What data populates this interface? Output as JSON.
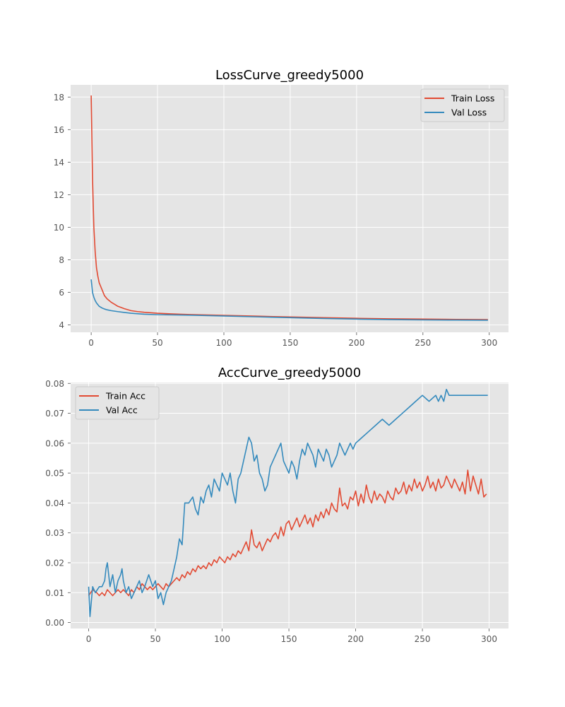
{
  "chart_data": [
    {
      "type": "line",
      "title": "LossCurve_greedy5000",
      "xlabel": "",
      "ylabel": "",
      "xlim": [
        -15.5,
        314.5
      ],
      "ylim": [
        3.55,
        18.75
      ],
      "xticks": [
        0,
        50,
        100,
        150,
        200,
        250,
        300
      ],
      "yticks": [
        4,
        6,
        8,
        10,
        12,
        14,
        16,
        18
      ],
      "grid": true,
      "legend": "top-right",
      "series": [
        {
          "name": "Train Loss",
          "color": "#E24A33",
          "x": [
            0,
            1,
            2,
            3,
            4,
            5,
            6,
            8,
            10,
            12,
            15,
            18,
            20,
            25,
            30,
            35,
            40,
            50,
            60,
            75,
            100,
            125,
            150,
            175,
            200,
            225,
            250,
            275,
            299
          ],
          "y": [
            18.1,
            13.0,
            10.0,
            8.5,
            7.5,
            7.0,
            6.6,
            6.2,
            5.8,
            5.6,
            5.4,
            5.25,
            5.15,
            5.0,
            4.88,
            4.82,
            4.78,
            4.72,
            4.68,
            4.64,
            4.59,
            4.54,
            4.49,
            4.45,
            4.41,
            4.38,
            4.36,
            4.34,
            4.33
          ]
        },
        {
          "name": "Val Loss",
          "color": "#348ABD",
          "x": [
            0,
            1,
            2,
            3,
            4,
            5,
            6,
            8,
            10,
            12,
            15,
            20,
            25,
            30,
            40,
            50,
            75,
            100,
            125,
            150,
            175,
            200,
            225,
            250,
            275,
            299
          ],
          "y": [
            6.8,
            6.0,
            5.7,
            5.5,
            5.35,
            5.25,
            5.15,
            5.05,
            4.98,
            4.93,
            4.88,
            4.82,
            4.77,
            4.72,
            4.66,
            4.63,
            4.6,
            4.55,
            4.5,
            4.45,
            4.4,
            4.36,
            4.33,
            4.31,
            4.3,
            4.29
          ]
        }
      ]
    },
    {
      "type": "line",
      "title": "AccCurve_greedy5000",
      "xlabel": "",
      "ylabel": "",
      "xlim": [
        -13.5,
        314.5
      ],
      "ylim": [
        -0.002,
        0.0803
      ],
      "xticks": [
        0,
        50,
        100,
        150,
        200,
        250,
        300
      ],
      "yticks": [
        0.0,
        0.01,
        0.02,
        0.03,
        0.04,
        0.05,
        0.06,
        0.07,
        0.08
      ],
      "ytick_labels": [
        "0.00",
        "0.01",
        "0.02",
        "0.03",
        "0.04",
        "0.05",
        "0.06",
        "0.07",
        "0.08"
      ],
      "grid": true,
      "legend": "top-left",
      "series": [
        {
          "name": "Train Acc",
          "color": "#E24A33",
          "x": [
            0,
            3,
            6,
            8,
            10,
            12,
            14,
            16,
            18,
            20,
            22,
            24,
            26,
            28,
            30,
            32,
            34,
            36,
            38,
            40,
            42,
            44,
            46,
            48,
            50,
            52,
            54,
            56,
            58,
            60,
            62,
            64,
            66,
            68,
            70,
            72,
            74,
            76,
            78,
            80,
            82,
            84,
            86,
            88,
            90,
            92,
            94,
            96,
            98,
            100,
            102,
            104,
            106,
            108,
            110,
            112,
            114,
            116,
            118,
            120,
            122,
            124,
            126,
            128,
            130,
            132,
            134,
            136,
            138,
            140,
            142,
            144,
            146,
            148,
            150,
            152,
            154,
            156,
            158,
            160,
            162,
            164,
            166,
            168,
            170,
            172,
            174,
            176,
            178,
            180,
            182,
            184,
            186,
            188,
            190,
            192,
            194,
            196,
            198,
            200,
            202,
            204,
            206,
            208,
            210,
            212,
            214,
            216,
            218,
            220,
            222,
            224,
            226,
            228,
            230,
            232,
            234,
            236,
            238,
            240,
            242,
            244,
            246,
            248,
            250,
            252,
            254,
            256,
            258,
            260,
            262,
            264,
            266,
            268,
            270,
            272,
            274,
            276,
            278,
            280,
            282,
            284,
            286,
            288,
            290,
            292,
            294,
            296,
            298
          ],
          "y": [
            0.009,
            0.011,
            0.01,
            0.009,
            0.01,
            0.009,
            0.011,
            0.01,
            0.009,
            0.01,
            0.011,
            0.01,
            0.011,
            0.01,
            0.009,
            0.011,
            0.01,
            0.012,
            0.011,
            0.013,
            0.012,
            0.011,
            0.012,
            0.011,
            0.012,
            0.013,
            0.012,
            0.011,
            0.013,
            0.012,
            0.013,
            0.014,
            0.015,
            0.014,
            0.016,
            0.015,
            0.017,
            0.016,
            0.018,
            0.017,
            0.019,
            0.018,
            0.019,
            0.018,
            0.02,
            0.019,
            0.021,
            0.02,
            0.022,
            0.021,
            0.02,
            0.022,
            0.021,
            0.023,
            0.022,
            0.024,
            0.023,
            0.025,
            0.027,
            0.024,
            0.031,
            0.026,
            0.025,
            0.027,
            0.024,
            0.026,
            0.028,
            0.027,
            0.029,
            0.03,
            0.028,
            0.032,
            0.029,
            0.033,
            0.034,
            0.031,
            0.033,
            0.035,
            0.032,
            0.034,
            0.036,
            0.033,
            0.035,
            0.032,
            0.036,
            0.034,
            0.037,
            0.035,
            0.038,
            0.036,
            0.04,
            0.038,
            0.037,
            0.045,
            0.039,
            0.04,
            0.038,
            0.042,
            0.041,
            0.044,
            0.039,
            0.043,
            0.04,
            0.046,
            0.042,
            0.04,
            0.044,
            0.041,
            0.043,
            0.042,
            0.04,
            0.044,
            0.042,
            0.041,
            0.045,
            0.043,
            0.044,
            0.047,
            0.043,
            0.046,
            0.044,
            0.048,
            0.045,
            0.047,
            0.044,
            0.046,
            0.049,
            0.045,
            0.047,
            0.044,
            0.048,
            0.045,
            0.046,
            0.049,
            0.047,
            0.045,
            0.048,
            0.046,
            0.044,
            0.047,
            0.043,
            0.051,
            0.044,
            0.049,
            0.046,
            0.043,
            0.048,
            0.042,
            0.043
          ]
        },
        {
          "name": "Val Acc",
          "color": "#348ABD",
          "x": [
            0,
            1,
            3,
            5,
            8,
            10,
            12,
            13,
            14,
            16,
            18,
            20,
            22,
            24,
            25,
            26,
            28,
            30,
            32,
            34,
            36,
            38,
            40,
            42,
            45,
            48,
            50,
            52,
            54,
            56,
            58,
            60,
            62,
            64,
            66,
            68,
            70,
            72,
            75,
            78,
            80,
            82,
            84,
            86,
            88,
            90,
            92,
            94,
            96,
            98,
            100,
            102,
            104,
            106,
            108,
            110,
            112,
            114,
            116,
            118,
            120,
            122,
            124,
            126,
            128,
            130,
            132,
            134,
            136,
            138,
            140,
            142,
            144,
            146,
            148,
            150,
            152,
            154,
            156,
            158,
            160,
            162,
            164,
            166,
            168,
            170,
            172,
            174,
            176,
            178,
            180,
            182,
            184,
            186,
            188,
            190,
            192,
            194,
            196,
            198,
            200,
            205,
            210,
            215,
            220,
            225,
            230,
            235,
            240,
            245,
            250,
            255,
            260,
            262,
            264,
            266,
            268,
            270,
            272,
            275,
            280,
            290,
            299
          ],
          "y": [
            0.012,
            0.002,
            0.012,
            0.01,
            0.012,
            0.012,
            0.014,
            0.018,
            0.02,
            0.012,
            0.016,
            0.01,
            0.014,
            0.016,
            0.018,
            0.014,
            0.01,
            0.012,
            0.008,
            0.01,
            0.012,
            0.014,
            0.01,
            0.012,
            0.016,
            0.012,
            0.014,
            0.008,
            0.01,
            0.006,
            0.01,
            0.012,
            0.014,
            0.018,
            0.022,
            0.028,
            0.026,
            0.04,
            0.04,
            0.042,
            0.038,
            0.036,
            0.042,
            0.04,
            0.044,
            0.046,
            0.042,
            0.048,
            0.046,
            0.044,
            0.05,
            0.048,
            0.046,
            0.05,
            0.044,
            0.04,
            0.048,
            0.05,
            0.054,
            0.058,
            0.062,
            0.06,
            0.054,
            0.056,
            0.05,
            0.048,
            0.044,
            0.046,
            0.052,
            0.054,
            0.056,
            0.058,
            0.06,
            0.054,
            0.052,
            0.05,
            0.054,
            0.052,
            0.048,
            0.054,
            0.058,
            0.056,
            0.06,
            0.058,
            0.056,
            0.052,
            0.058,
            0.056,
            0.054,
            0.058,
            0.056,
            0.052,
            0.054,
            0.056,
            0.06,
            0.058,
            0.056,
            0.058,
            0.06,
            0.058,
            0.06,
            0.062,
            0.064,
            0.066,
            0.068,
            0.066,
            0.068,
            0.07,
            0.072,
            0.074,
            0.076,
            0.074,
            0.076,
            0.074,
            0.076,
            0.074,
            0.078,
            0.076,
            0.076,
            0.076,
            0.076,
            0.076,
            0.076
          ]
        }
      ]
    }
  ]
}
